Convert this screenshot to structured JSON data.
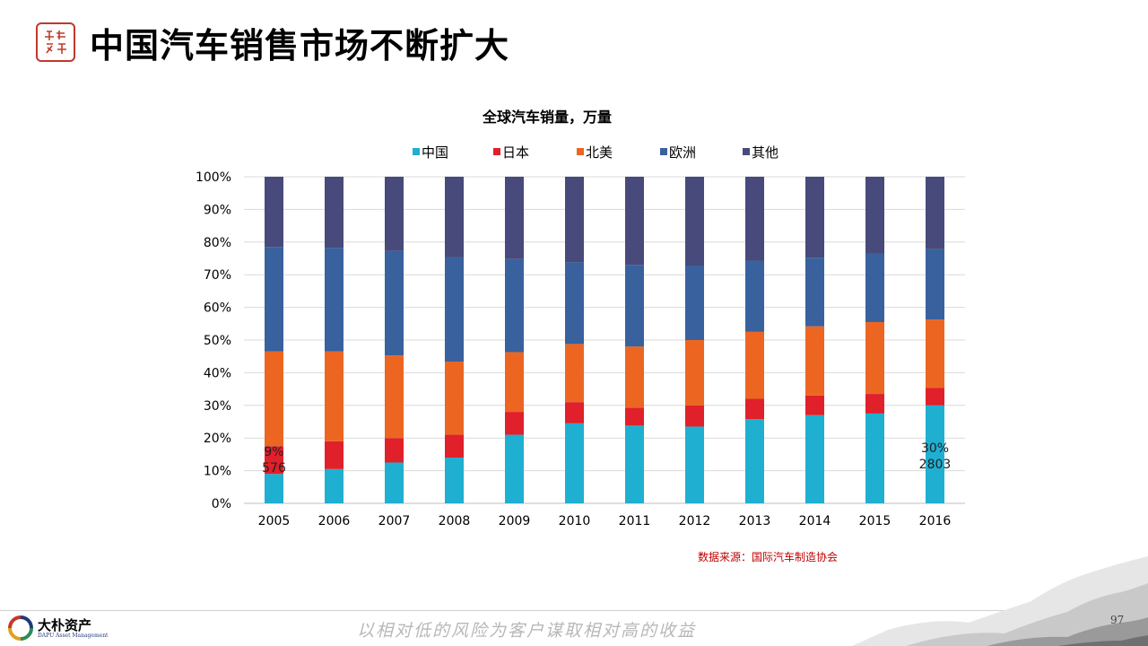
{
  "header": {
    "title": "中国汽车销售市场不断扩大"
  },
  "chart_data": {
    "type": "bar",
    "stacked": true,
    "normalized": true,
    "title": "全球汽车销量，万量",
    "categories": [
      "2005",
      "2006",
      "2007",
      "2008",
      "2009",
      "2010",
      "2011",
      "2012",
      "2013",
      "2014",
      "2015",
      "2016"
    ],
    "y_ticks": [
      "0%",
      "10%",
      "20%",
      "30%",
      "40%",
      "50%",
      "60%",
      "70%",
      "80%",
      "90%",
      "100%"
    ],
    "ylim": [
      0,
      100
    ],
    "grid": true,
    "legend_position": "top",
    "series": [
      {
        "name": "中国",
        "color": "#1fafd1",
        "values": [
          9,
          10.5,
          12.5,
          14,
          21,
          24.5,
          23.8,
          23.5,
          25.8,
          27,
          27.5,
          30
        ]
      },
      {
        "name": "日本",
        "color": "#e0202a",
        "values": [
          8.5,
          8.5,
          7.5,
          7,
          7,
          6.5,
          5.5,
          6.5,
          6.2,
          6,
          6,
          5.3
        ]
      },
      {
        "name": "北美",
        "color": "#ec6622",
        "values": [
          29,
          27.5,
          25.3,
          22.4,
          18.3,
          17.8,
          18.7,
          20,
          20.5,
          21.2,
          22,
          21
        ]
      },
      {
        "name": "欧洲",
        "color": "#38619e",
        "values": [
          32,
          31.7,
          32,
          31.9,
          28.5,
          25,
          25,
          22.8,
          21.8,
          21,
          21,
          21.5
        ]
      },
      {
        "name": "其他",
        "color": "#474a7a",
        "values": [
          21.5,
          21.8,
          22.7,
          24.7,
          25.2,
          26.2,
          27,
          27.2,
          25.7,
          24.8,
          23.5,
          22.2
        ]
      }
    ],
    "annotations": [
      {
        "category": "2005",
        "lines": [
          "9%",
          "576"
        ]
      },
      {
        "category": "2016",
        "lines": [
          "30%",
          "2803"
        ]
      }
    ]
  },
  "source": "数据来源：国际汽车制造协会",
  "footer": {
    "company_name": "大朴资产",
    "company_en": "DAPU Asset Management",
    "slogan": "以相对低的风险为客户谋取相对高的收益",
    "page_number": "97"
  }
}
